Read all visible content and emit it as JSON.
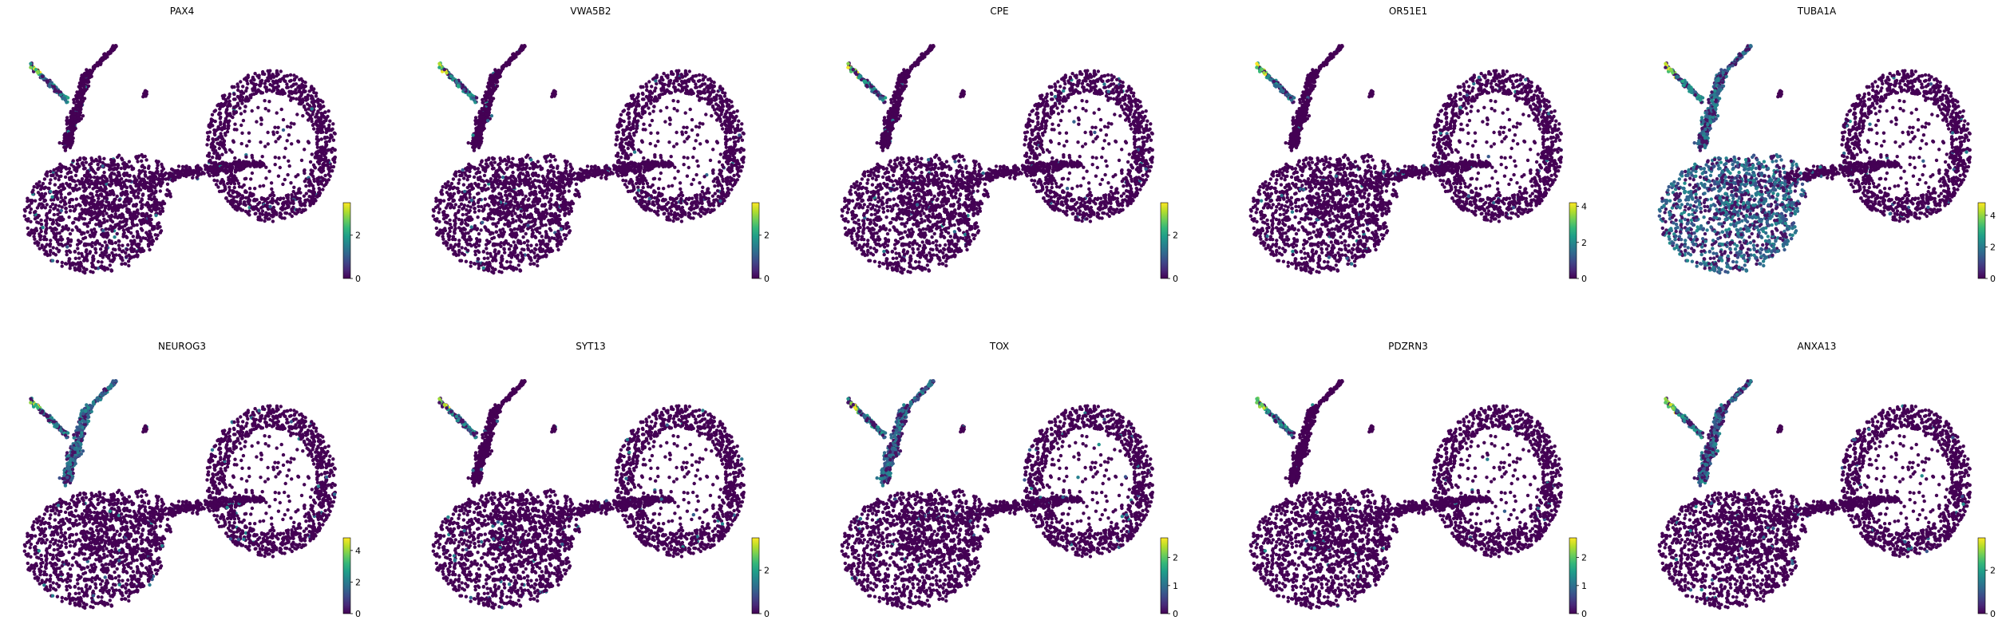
{
  "figure": {
    "colormap": [
      "#440154",
      "#482878",
      "#3e4989",
      "#31688e",
      "#26828e",
      "#1f9e89",
      "#35b779",
      "#6ece58",
      "#b5de2b",
      "#fde725"
    ],
    "background": "#ffffff"
  },
  "chart_data": [
    {
      "type": "scatter",
      "title": "PAX4",
      "colorbar": {
        "min": 0,
        "max": 3.5,
        "ticks": [
          0,
          2
        ]
      },
      "hotspots": [
        "progenitor-tip"
      ]
    },
    {
      "type": "scatter",
      "title": "VWA5B2",
      "colorbar": {
        "min": 0,
        "max": 3.5,
        "ticks": [
          0,
          2
        ]
      },
      "hotspots": [
        "progenitor-tip"
      ]
    },
    {
      "type": "scatter",
      "title": "CPE",
      "colorbar": {
        "min": 0,
        "max": 3.5,
        "ticks": [
          0,
          2
        ]
      },
      "hotspots": [
        "progenitor-tip"
      ]
    },
    {
      "type": "scatter",
      "title": "OR51E1",
      "colorbar": {
        "min": 0,
        "max": 4.2,
        "ticks": [
          0,
          2,
          4
        ]
      },
      "hotspots": [
        "progenitor-tip"
      ]
    },
    {
      "type": "scatter",
      "title": "TUBA1A",
      "colorbar": {
        "min": 0,
        "max": 4.8,
        "ticks": [
          0,
          2,
          4
        ]
      },
      "hotspots": [
        "progenitor-tip",
        "upper-branch",
        "lower-cluster"
      ]
    },
    {
      "type": "scatter",
      "title": "NEUROG3",
      "colorbar": {
        "min": 0,
        "max": 4.8,
        "ticks": [
          0,
          2,
          4
        ]
      },
      "hotspots": [
        "progenitor-tip",
        "upper-branch"
      ]
    },
    {
      "type": "scatter",
      "title": "SYT13",
      "colorbar": {
        "min": 0,
        "max": 3.5,
        "ticks": [
          0,
          2
        ]
      },
      "hotspots": [
        "progenitor-tip"
      ]
    },
    {
      "type": "scatter",
      "title": "TOX",
      "colorbar": {
        "min": 0,
        "max": 2.7,
        "ticks": [
          0,
          1,
          2
        ]
      },
      "hotspots": [
        "progenitor-tip",
        "upper-branch"
      ]
    },
    {
      "type": "scatter",
      "title": "PDZRN3",
      "colorbar": {
        "min": 0,
        "max": 2.7,
        "ticks": [
          0,
          1,
          2
        ]
      },
      "hotspots": [
        "progenitor-tip"
      ]
    },
    {
      "type": "scatter",
      "title": "ANXA13",
      "colorbar": {
        "min": 0,
        "max": 3.5,
        "ticks": [
          0,
          2
        ]
      },
      "hotspots": [
        "progenitor-tip",
        "upper-branch"
      ]
    }
  ]
}
